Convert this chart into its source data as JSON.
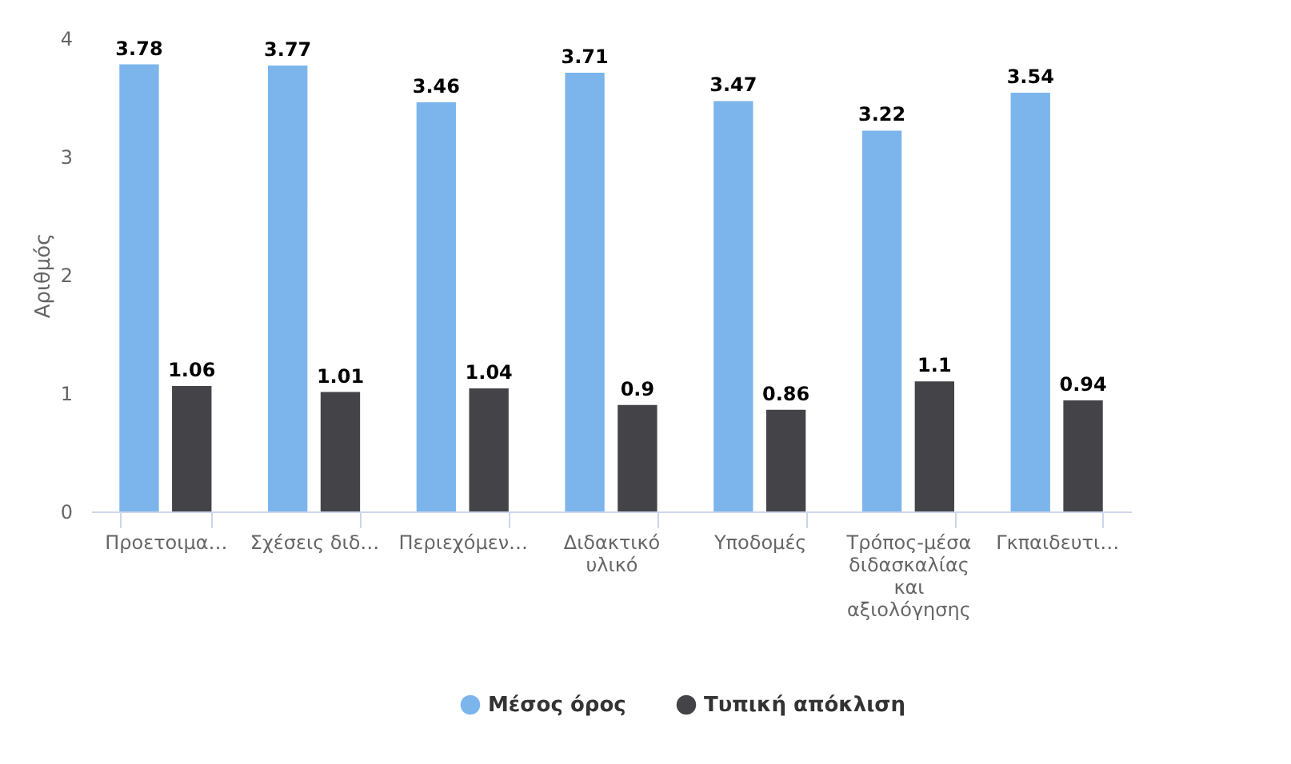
{
  "chart_data": {
    "type": "bar",
    "ylabel": "Αριθμός",
    "categories": [
      "Προετοιμα…",
      "Σχέσεις διδ…",
      "Περιεχόμεν…",
      "Διδακτικό υλικό",
      "Υποδομές",
      "Τρόπος-μέσα διδασκαλίας και αξιολόγησης",
      "Γκπαιδευτι…"
    ],
    "series": [
      {
        "name": "Μέσος όρος",
        "color": "#7cb5ec",
        "values": [
          3.78,
          3.77,
          3.46,
          3.71,
          3.47,
          3.22,
          3.54
        ]
      },
      {
        "name": "Τυπική απόκλιση",
        "color": "#434348",
        "values": [
          1.06,
          1.01,
          1.04,
          0.9,
          0.86,
          1.1,
          0.94
        ]
      }
    ],
    "ylim": [
      0,
      4
    ],
    "yticks": [
      0,
      1,
      2,
      3,
      4
    ],
    "grid": false,
    "legend": "bottom",
    "data_labels": true
  }
}
